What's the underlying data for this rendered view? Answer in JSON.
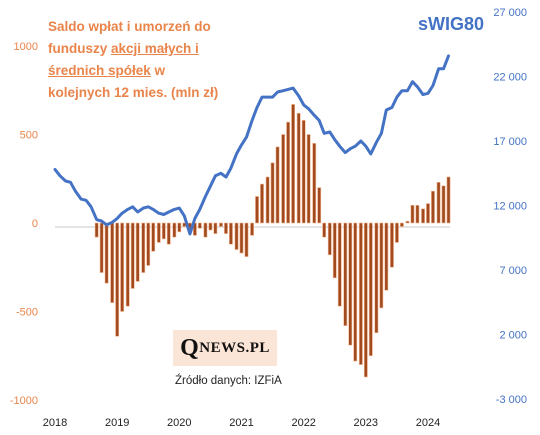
{
  "chart_data": {
    "type": "bar",
    "title": "Saldo wpłat i umorzeń do funduszy akcji małych i średnich spółek w kolejnych 12 mies. (mln zł)",
    "title_parts": {
      "line1": "Saldo wpłat i umorzeń do",
      "line2_pre": "funduszy ",
      "line2_link": "akcji małych i",
      "line3_link": "średnich spółek",
      "line3_post": " w",
      "line4": "kolejnych 12 mies. (mln zł)"
    },
    "x_ticks": [
      "2018",
      "2019",
      "2020",
      "2021",
      "2022",
      "2023",
      "2024"
    ],
    "y_left": {
      "ticks": [
        "1000",
        "500",
        "0",
        "-500",
        "-1000"
      ],
      "ylim": [
        -1000,
        1000
      ],
      "color": "#e9844a"
    },
    "y_right": {
      "ticks": [
        "27 000",
        "22 000",
        "17 000",
        "12 000",
        "7 000",
        "2 000",
        "-3 000"
      ],
      "ylim": [
        -3000,
        27000
      ],
      "color": "#4472c4"
    },
    "bar_series": {
      "name": "Saldo wpłat i umorzeń (mln zł)",
      "color": "#a14a1f",
      "points": [
        {
          "x": 2018.67,
          "y": -80
        },
        {
          "x": 2018.75,
          "y": -280
        },
        {
          "x": 2018.83,
          "y": -340
        },
        {
          "x": 2018.92,
          "y": -450
        },
        {
          "x": 2019.0,
          "y": -640
        },
        {
          "x": 2019.08,
          "y": -500
        },
        {
          "x": 2019.17,
          "y": -470
        },
        {
          "x": 2019.25,
          "y": -370
        },
        {
          "x": 2019.33,
          "y": -330
        },
        {
          "x": 2019.42,
          "y": -280
        },
        {
          "x": 2019.5,
          "y": -240
        },
        {
          "x": 2019.58,
          "y": -160
        },
        {
          "x": 2019.67,
          "y": -110
        },
        {
          "x": 2019.75,
          "y": -90
        },
        {
          "x": 2019.83,
          "y": -120
        },
        {
          "x": 2019.92,
          "y": -80
        },
        {
          "x": 2020.0,
          "y": -50
        },
        {
          "x": 2020.08,
          "y": -20
        },
        {
          "x": 2020.17,
          "y": -50
        },
        {
          "x": 2020.25,
          "y": -70
        },
        {
          "x": 2020.33,
          "y": -30
        },
        {
          "x": 2020.42,
          "y": -80
        },
        {
          "x": 2020.5,
          "y": -40
        },
        {
          "x": 2020.58,
          "y": -60
        },
        {
          "x": 2020.67,
          "y": -20
        },
        {
          "x": 2020.75,
          "y": -60
        },
        {
          "x": 2020.83,
          "y": -120
        },
        {
          "x": 2020.92,
          "y": -150
        },
        {
          "x": 2021.0,
          "y": -170
        },
        {
          "x": 2021.08,
          "y": -190
        },
        {
          "x": 2021.17,
          "y": -70
        },
        {
          "x": 2021.25,
          "y": 150
        },
        {
          "x": 2021.33,
          "y": 220
        },
        {
          "x": 2021.42,
          "y": 260
        },
        {
          "x": 2021.5,
          "y": 340
        },
        {
          "x": 2021.58,
          "y": 430
        },
        {
          "x": 2021.67,
          "y": 500
        },
        {
          "x": 2021.75,
          "y": 570
        },
        {
          "x": 2021.83,
          "y": 670
        },
        {
          "x": 2021.92,
          "y": 620
        },
        {
          "x": 2022.0,
          "y": 580
        },
        {
          "x": 2022.08,
          "y": 500
        },
        {
          "x": 2022.17,
          "y": 450
        },
        {
          "x": 2022.25,
          "y": 200
        },
        {
          "x": 2022.33,
          "y": -80
        },
        {
          "x": 2022.42,
          "y": -180
        },
        {
          "x": 2022.5,
          "y": -310
        },
        {
          "x": 2022.58,
          "y": -470
        },
        {
          "x": 2022.67,
          "y": -580
        },
        {
          "x": 2022.75,
          "y": -690
        },
        {
          "x": 2022.83,
          "y": -780
        },
        {
          "x": 2022.92,
          "y": -800
        },
        {
          "x": 2023.0,
          "y": -870
        },
        {
          "x": 2023.08,
          "y": -750
        },
        {
          "x": 2023.17,
          "y": -620
        },
        {
          "x": 2023.25,
          "y": -480
        },
        {
          "x": 2023.33,
          "y": -380
        },
        {
          "x": 2023.42,
          "y": -250
        },
        {
          "x": 2023.5,
          "y": -110
        },
        {
          "x": 2023.58,
          "y": -20
        },
        {
          "x": 2023.67,
          "y": 10
        },
        {
          "x": 2023.75,
          "y": 100
        },
        {
          "x": 2023.83,
          "y": 100
        },
        {
          "x": 2023.92,
          "y": 80
        },
        {
          "x": 2024.0,
          "y": 110
        },
        {
          "x": 2024.08,
          "y": 180
        },
        {
          "x": 2024.17,
          "y": 230
        },
        {
          "x": 2024.25,
          "y": 210
        },
        {
          "x": 2024.33,
          "y": 260
        }
      ]
    },
    "line_series": {
      "name": "sWIG80",
      "color": "#4472c4",
      "points": [
        {
          "x": 2018.0,
          "y": 14800
        },
        {
          "x": 2018.08,
          "y": 14300
        },
        {
          "x": 2018.17,
          "y": 13900
        },
        {
          "x": 2018.25,
          "y": 13800
        },
        {
          "x": 2018.33,
          "y": 13100
        },
        {
          "x": 2018.42,
          "y": 12500
        },
        {
          "x": 2018.5,
          "y": 12400
        },
        {
          "x": 2018.58,
          "y": 11900
        },
        {
          "x": 2018.67,
          "y": 10900
        },
        {
          "x": 2018.75,
          "y": 10800
        },
        {
          "x": 2018.83,
          "y": 10500
        },
        {
          "x": 2018.92,
          "y": 10700
        },
        {
          "x": 2019.0,
          "y": 11000
        },
        {
          "x": 2019.08,
          "y": 11400
        },
        {
          "x": 2019.17,
          "y": 11700
        },
        {
          "x": 2019.25,
          "y": 11900
        },
        {
          "x": 2019.33,
          "y": 11500
        },
        {
          "x": 2019.42,
          "y": 11800
        },
        {
          "x": 2019.5,
          "y": 11900
        },
        {
          "x": 2019.58,
          "y": 11700
        },
        {
          "x": 2019.67,
          "y": 11400
        },
        {
          "x": 2019.75,
          "y": 11300
        },
        {
          "x": 2019.83,
          "y": 11500
        },
        {
          "x": 2019.92,
          "y": 11700
        },
        {
          "x": 2020.0,
          "y": 11800
        },
        {
          "x": 2020.08,
          "y": 11200
        },
        {
          "x": 2020.17,
          "y": 9800
        },
        {
          "x": 2020.25,
          "y": 11000
        },
        {
          "x": 2020.33,
          "y": 11700
        },
        {
          "x": 2020.42,
          "y": 12700
        },
        {
          "x": 2020.5,
          "y": 13500
        },
        {
          "x": 2020.58,
          "y": 14300
        },
        {
          "x": 2020.67,
          "y": 14500
        },
        {
          "x": 2020.75,
          "y": 14200
        },
        {
          "x": 2020.83,
          "y": 14900
        },
        {
          "x": 2020.92,
          "y": 16000
        },
        {
          "x": 2021.0,
          "y": 16700
        },
        {
          "x": 2021.08,
          "y": 17300
        },
        {
          "x": 2021.17,
          "y": 18600
        },
        {
          "x": 2021.25,
          "y": 19600
        },
        {
          "x": 2021.33,
          "y": 20400
        },
        {
          "x": 2021.42,
          "y": 20400
        },
        {
          "x": 2021.5,
          "y": 20400
        },
        {
          "x": 2021.58,
          "y": 20800
        },
        {
          "x": 2021.67,
          "y": 20900
        },
        {
          "x": 2021.75,
          "y": 21000
        },
        {
          "x": 2021.83,
          "y": 21100
        },
        {
          "x": 2021.92,
          "y": 20500
        },
        {
          "x": 2022.0,
          "y": 19800
        },
        {
          "x": 2022.08,
          "y": 19500
        },
        {
          "x": 2022.17,
          "y": 19000
        },
        {
          "x": 2022.25,
          "y": 18600
        },
        {
          "x": 2022.33,
          "y": 17600
        },
        {
          "x": 2022.42,
          "y": 17700
        },
        {
          "x": 2022.5,
          "y": 17100
        },
        {
          "x": 2022.58,
          "y": 16600
        },
        {
          "x": 2022.67,
          "y": 16100
        },
        {
          "x": 2022.75,
          "y": 16400
        },
        {
          "x": 2022.83,
          "y": 16600
        },
        {
          "x": 2022.92,
          "y": 17000
        },
        {
          "x": 2023.0,
          "y": 16600
        },
        {
          "x": 2023.08,
          "y": 16000
        },
        {
          "x": 2023.17,
          "y": 16900
        },
        {
          "x": 2023.25,
          "y": 17600
        },
        {
          "x": 2023.33,
          "y": 19400
        },
        {
          "x": 2023.42,
          "y": 19600
        },
        {
          "x": 2023.5,
          "y": 20400
        },
        {
          "x": 2023.58,
          "y": 20900
        },
        {
          "x": 2023.67,
          "y": 20900
        },
        {
          "x": 2023.75,
          "y": 21600
        },
        {
          "x": 2023.83,
          "y": 21200
        },
        {
          "x": 2023.92,
          "y": 20600
        },
        {
          "x": 2024.0,
          "y": 20700
        },
        {
          "x": 2024.08,
          "y": 21300
        },
        {
          "x": 2024.17,
          "y": 22600
        },
        {
          "x": 2024.25,
          "y": 22600
        },
        {
          "x": 2024.33,
          "y": 23600
        }
      ]
    },
    "series_label": "sWIG80",
    "logo": {
      "q": "Q",
      "rest": "NEWS.PL"
    },
    "source": "Źródło danych: IZFiA"
  }
}
